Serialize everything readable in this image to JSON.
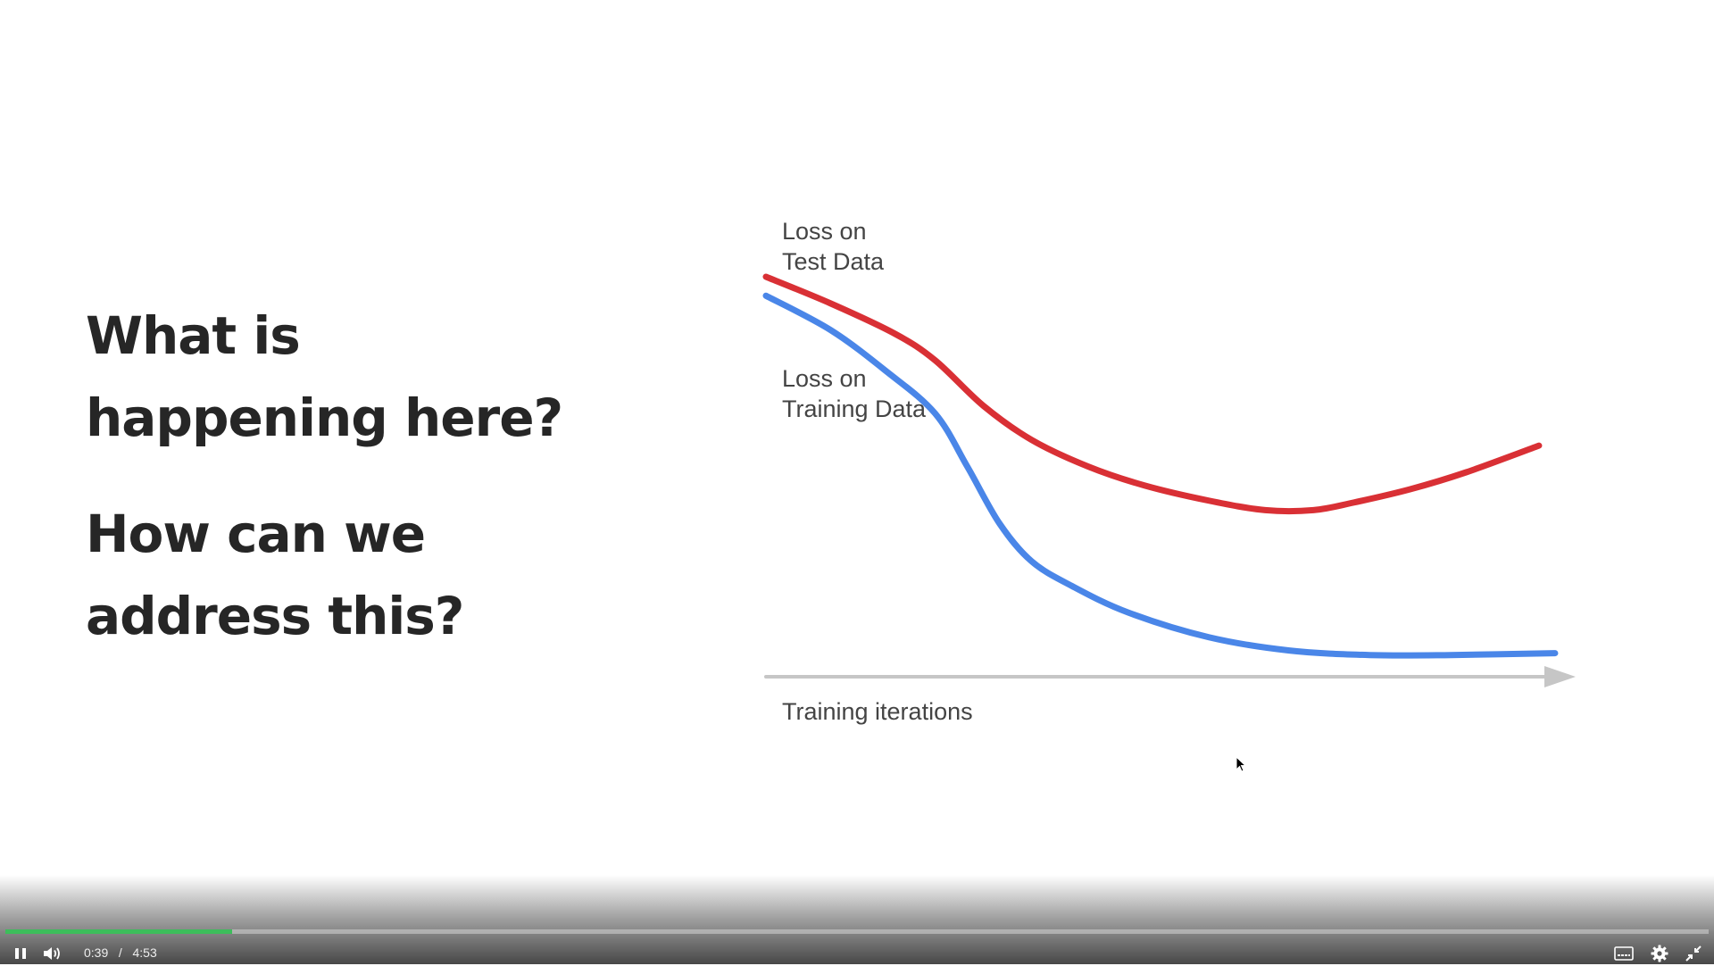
{
  "slide": {
    "question1": [
      "What is",
      "happening here?"
    ],
    "question2": [
      "How can we",
      "address this?"
    ]
  },
  "chart_data": {
    "type": "line",
    "xlabel": "Training iterations",
    "ylabel": "",
    "title": "",
    "x_range": [
      0,
      100
    ],
    "y_range": [
      0,
      100
    ],
    "series": [
      {
        "name": "Loss on Test Data",
        "color": "#d93035",
        "x": [
          0,
          8,
          16,
          21,
          27,
          33,
          40,
          47,
          55,
          62,
          68,
          73,
          80,
          87,
          96
        ],
        "y": [
          100,
          93,
          85,
          78,
          66,
          57,
          50,
          45,
          41,
          38.5,
          38.5,
          40.5,
          44,
          48.5,
          55.5
        ]
      },
      {
        "name": "Loss on Training Data",
        "color": "#4a86e8",
        "x": [
          0,
          8,
          15,
          21,
          25,
          29,
          33,
          38,
          45,
          55,
          65,
          75,
          85,
          98
        ],
        "y": [
          95,
          86,
          75,
          64,
          50,
          35,
          25,
          18.5,
          11.5,
          5,
          1.5,
          0.3,
          0.3,
          0.8
        ]
      }
    ],
    "annotations": [
      {
        "line1": "Loss on",
        "line2": "Test Data"
      },
      {
        "line1": "Loss on",
        "line2": "Training Data"
      }
    ],
    "axis_color": "#c6c6c6",
    "grid": false
  },
  "player": {
    "progress": 0.133,
    "accent": "#3dbd5b",
    "current_time": "0:39",
    "separator": "/",
    "duration": "4:53",
    "icons": [
      "pause-icon",
      "volume-icon",
      "captions-icon",
      "settings-gear-icon",
      "exit-fullscreen-icon"
    ]
  }
}
